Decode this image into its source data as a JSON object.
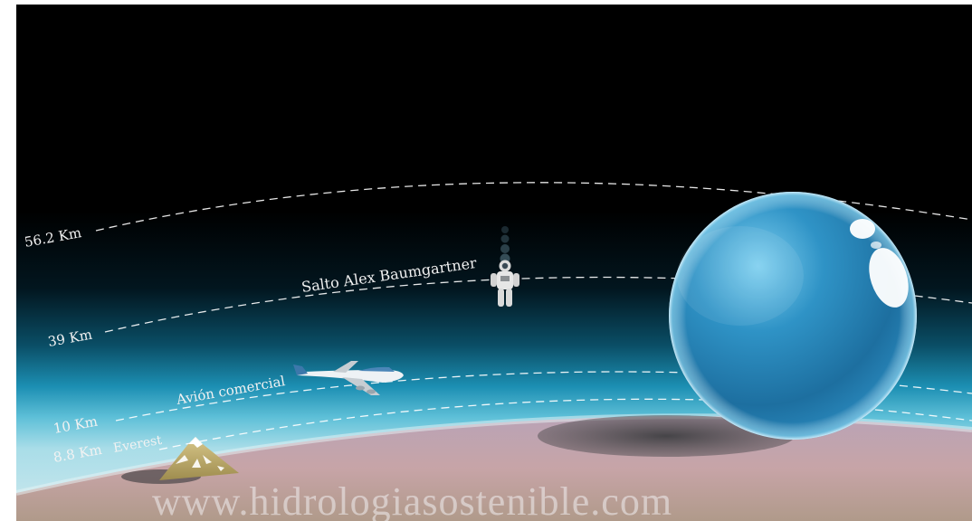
{
  "altitudes": [
    {
      "value": "56.2 Km",
      "label": ""
    },
    {
      "value": "39 Km",
      "label": "Salto Alex Baumgartner"
    },
    {
      "value": "10 Km",
      "label": "Avión comercial"
    },
    {
      "value": "8.8 Km",
      "label": "Everest"
    }
  ],
  "watermark": "www.hidrologiasostenible.com",
  "colors": {
    "space": "#000000",
    "atmosphere_glow": "#1fa3c9",
    "sphere": "#2d8fc2",
    "earth": "#c4a5ad",
    "mountain": "#bba768",
    "dashed_line": "#ffffff"
  },
  "icons": [
    "astronaut-icon",
    "airplane-icon",
    "mountain-icon",
    "water-sphere-icon"
  ]
}
